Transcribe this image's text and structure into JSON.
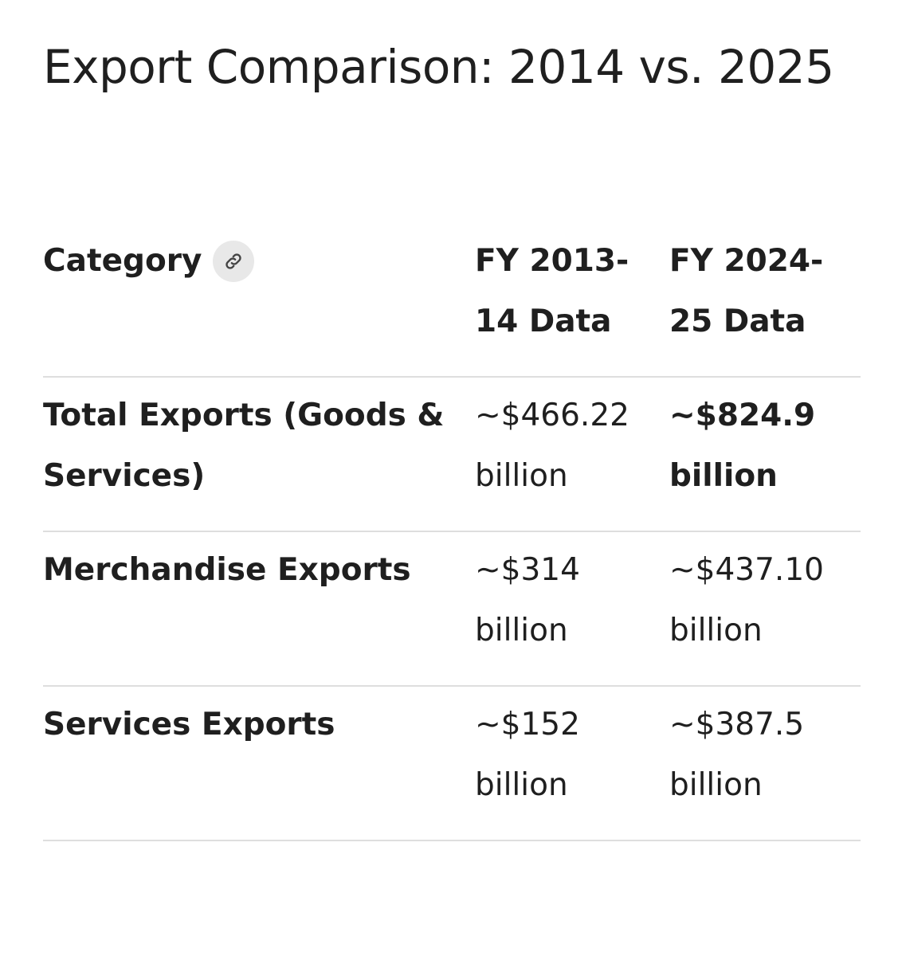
{
  "title": "Export Comparison: 2014 vs. 2025",
  "table": {
    "headers": {
      "category": "Category",
      "col1": "FY 2013-14 Data",
      "col2": "FY 2024-25 Data",
      "category_icon": "link-icon"
    },
    "rows": [
      {
        "category": "Total Exports (Goods & Services)",
        "fy2014": "~$466.22 billion",
        "fy2025": "~$824.9 billion",
        "fy2025_bold": true
      },
      {
        "category": "Merchandise Exports",
        "fy2014": "~$314 billion",
        "fy2025": "~$437.10 billion"
      },
      {
        "category": "Services Exports",
        "fy2014": "~$152 billion",
        "fy2025": "~$387.5 billion"
      }
    ]
  }
}
